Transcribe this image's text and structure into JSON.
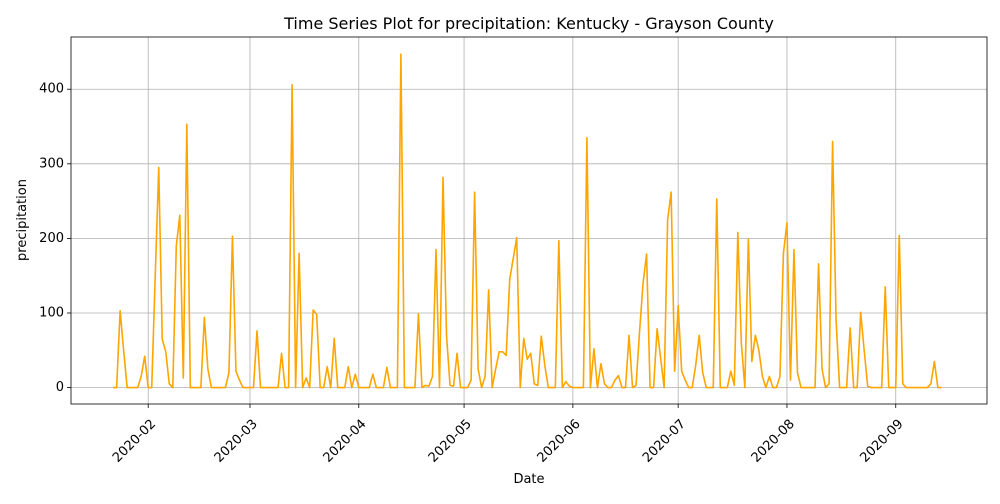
{
  "chart_data": {
    "type": "line",
    "title": "Time Series Plot for precipitation: Kentucky - Grayson County",
    "x_label": "Date",
    "y_label": "precipitation",
    "color": "#ffa500",
    "grid": true,
    "xlim": [
      "2020-01-10",
      "2020-09-27"
    ],
    "ylim": [
      -22,
      470
    ],
    "xticks": [
      {
        "value": "2020-02-01",
        "label": "2020-02"
      },
      {
        "value": "2020-03-01",
        "label": "2020-03"
      },
      {
        "value": "2020-04-01",
        "label": "2020-04"
      },
      {
        "value": "2020-05-01",
        "label": "2020-05"
      },
      {
        "value": "2020-06-01",
        "label": "2020-06"
      },
      {
        "value": "2020-07-01",
        "label": "2020-07"
      },
      {
        "value": "2020-08-01",
        "label": "2020-08"
      },
      {
        "value": "2020-09-01",
        "label": "2020-09"
      }
    ],
    "yticks": [
      0,
      100,
      200,
      300,
      400
    ],
    "x": [
      "2020-01-22",
      "2020-01-23",
      "2020-01-24",
      "2020-01-25",
      "2020-01-26",
      "2020-01-27",
      "2020-01-28",
      "2020-01-29",
      "2020-01-30",
      "2020-01-31",
      "2020-02-01",
      "2020-02-02",
      "2020-02-03",
      "2020-02-04",
      "2020-02-05",
      "2020-02-06",
      "2020-02-07",
      "2020-02-08",
      "2020-02-09",
      "2020-02-10",
      "2020-02-11",
      "2020-02-12",
      "2020-02-13",
      "2020-02-14",
      "2020-02-15",
      "2020-02-16",
      "2020-02-17",
      "2020-02-18",
      "2020-02-19",
      "2020-02-20",
      "2020-02-21",
      "2020-02-23",
      "2020-02-24",
      "2020-02-25",
      "2020-02-26",
      "2020-02-27",
      "2020-02-28",
      "2020-02-29",
      "2020-03-01",
      "2020-03-02",
      "2020-03-03",
      "2020-03-04",
      "2020-03-05",
      "2020-03-06",
      "2020-03-07",
      "2020-03-08",
      "2020-03-09",
      "2020-03-10",
      "2020-03-11",
      "2020-03-12",
      "2020-03-13",
      "2020-03-14",
      "2020-03-15",
      "2020-03-16",
      "2020-03-17",
      "2020-03-18",
      "2020-03-19",
      "2020-03-20",
      "2020-03-21",
      "2020-03-22",
      "2020-03-23",
      "2020-03-24",
      "2020-03-25",
      "2020-03-26",
      "2020-03-27",
      "2020-03-28",
      "2020-03-29",
      "2020-03-30",
      "2020-03-31",
      "2020-04-01",
      "2020-04-02",
      "2020-04-04",
      "2020-04-05",
      "2020-04-06",
      "2020-04-07",
      "2020-04-08",
      "2020-04-09",
      "2020-04-10",
      "2020-04-11",
      "2020-04-12",
      "2020-04-13",
      "2020-04-14",
      "2020-04-15",
      "2020-04-16",
      "2020-04-17",
      "2020-04-18",
      "2020-04-19",
      "2020-04-20",
      "2020-04-21",
      "2020-04-22",
      "2020-04-23",
      "2020-04-24",
      "2020-04-25",
      "2020-04-26",
      "2020-04-27",
      "2020-04-28",
      "2020-04-29",
      "2020-04-30",
      "2020-05-01",
      "2020-05-02",
      "2020-05-03",
      "2020-05-04",
      "2020-05-05",
      "2020-05-06",
      "2020-05-07",
      "2020-05-08",
      "2020-05-09",
      "2020-05-10",
      "2020-05-11",
      "2020-05-12",
      "2020-05-13",
      "2020-05-14",
      "2020-05-16",
      "2020-05-17",
      "2020-05-18",
      "2020-05-19",
      "2020-05-20",
      "2020-05-21",
      "2020-05-22",
      "2020-05-23",
      "2020-05-24",
      "2020-05-25",
      "2020-05-26",
      "2020-05-27",
      "2020-05-28",
      "2020-05-29",
      "2020-05-30",
      "2020-05-31",
      "2020-06-01",
      "2020-06-02",
      "2020-06-03",
      "2020-06-04",
      "2020-06-05",
      "2020-06-06",
      "2020-06-07",
      "2020-06-08",
      "2020-06-09",
      "2020-06-10",
      "2020-06-11",
      "2020-06-12",
      "2020-06-13",
      "2020-06-14",
      "2020-06-15",
      "2020-06-16",
      "2020-06-17",
      "2020-06-18",
      "2020-06-19",
      "2020-06-20",
      "2020-06-21",
      "2020-06-22",
      "2020-06-23",
      "2020-06-24",
      "2020-06-25",
      "2020-06-27",
      "2020-06-28",
      "2020-06-29",
      "2020-06-30",
      "2020-07-01",
      "2020-07-02",
      "2020-07-03",
      "2020-07-04",
      "2020-07-05",
      "2020-07-06",
      "2020-07-07",
      "2020-07-08",
      "2020-07-09",
      "2020-07-10",
      "2020-07-11",
      "2020-07-12",
      "2020-07-13",
      "2020-07-14",
      "2020-07-15",
      "2020-07-16",
      "2020-07-17",
      "2020-07-18",
      "2020-07-19",
      "2020-07-20",
      "2020-07-21",
      "2020-07-22",
      "2020-07-23",
      "2020-07-24",
      "2020-07-25",
      "2020-07-26",
      "2020-07-27",
      "2020-07-28",
      "2020-07-29",
      "2020-07-30",
      "2020-07-31",
      "2020-08-01",
      "2020-08-02",
      "2020-08-03",
      "2020-08-04",
      "2020-08-05",
      "2020-08-07",
      "2020-08-08",
      "2020-08-09",
      "2020-08-10",
      "2020-08-11",
      "2020-08-12",
      "2020-08-13",
      "2020-08-14",
      "2020-08-15",
      "2020-08-16",
      "2020-08-17",
      "2020-08-18",
      "2020-08-19",
      "2020-08-20",
      "2020-08-21",
      "2020-08-22",
      "2020-08-23",
      "2020-08-24",
      "2020-08-25",
      "2020-08-26",
      "2020-08-27",
      "2020-08-28",
      "2020-08-29",
      "2020-08-30",
      "2020-08-31",
      "2020-09-01",
      "2020-09-02",
      "2020-09-03",
      "2020-09-04",
      "2020-09-05",
      "2020-09-06",
      "2020-09-07",
      "2020-09-08",
      "2020-09-09",
      "2020-09-10",
      "2020-09-11",
      "2020-09-12",
      "2020-09-13",
      "2020-09-14"
    ],
    "values": [
      0,
      0,
      103,
      50,
      0,
      0,
      0,
      0,
      15,
      42,
      0,
      0,
      150,
      295,
      65,
      48,
      5,
      0,
      190,
      231,
      13,
      353,
      0,
      0,
      0,
      0,
      94,
      25,
      0,
      0,
      0,
      0,
      20,
      203,
      22,
      10,
      0,
      0,
      0,
      0,
      76,
      0,
      0,
      0,
      0,
      0,
      0,
      46,
      0,
      0,
      406,
      0,
      180,
      0,
      13,
      0,
      104,
      98,
      0,
      0,
      28,
      0,
      66,
      0,
      0,
      0,
      28,
      0,
      18,
      0,
      0,
      0,
      18,
      0,
      0,
      0,
      27,
      0,
      0,
      0,
      447,
      0,
      0,
      0,
      0,
      99,
      0,
      3,
      2,
      15,
      185,
      0,
      282,
      70,
      3,
      2,
      46,
      0,
      0,
      0,
      10,
      262,
      25,
      0,
      15,
      131,
      0,
      25,
      48,
      48,
      43,
      145,
      201,
      0,
      66,
      38,
      46,
      5,
      3,
      69,
      30,
      0,
      0,
      0,
      197,
      0,
      8,
      2,
      0,
      0,
      0,
      0,
      335,
      0,
      52,
      0,
      32,
      5,
      0,
      0,
      10,
      16,
      0,
      0,
      70,
      0,
      3,
      75,
      140,
      179,
      0,
      0,
      79,
      0,
      225,
      262,
      22,
      110,
      22,
      10,
      0,
      0,
      30,
      70,
      20,
      0,
      0,
      0,
      253,
      0,
      0,
      0,
      22,
      3,
      208,
      60,
      0,
      199,
      35,
      70,
      50,
      15,
      0,
      15,
      0,
      0,
      15,
      180,
      221,
      10,
      185,
      20,
      0,
      0,
      0,
      0,
      166,
      25,
      0,
      5,
      330,
      90,
      0,
      0,
      0,
      80,
      0,
      0,
      101,
      50,
      2,
      0,
      0,
      0,
      0,
      135,
      0,
      0,
      0,
      204,
      5,
      0,
      0,
      0,
      0,
      0,
      0,
      0,
      5,
      35,
      0,
      0
    ]
  }
}
